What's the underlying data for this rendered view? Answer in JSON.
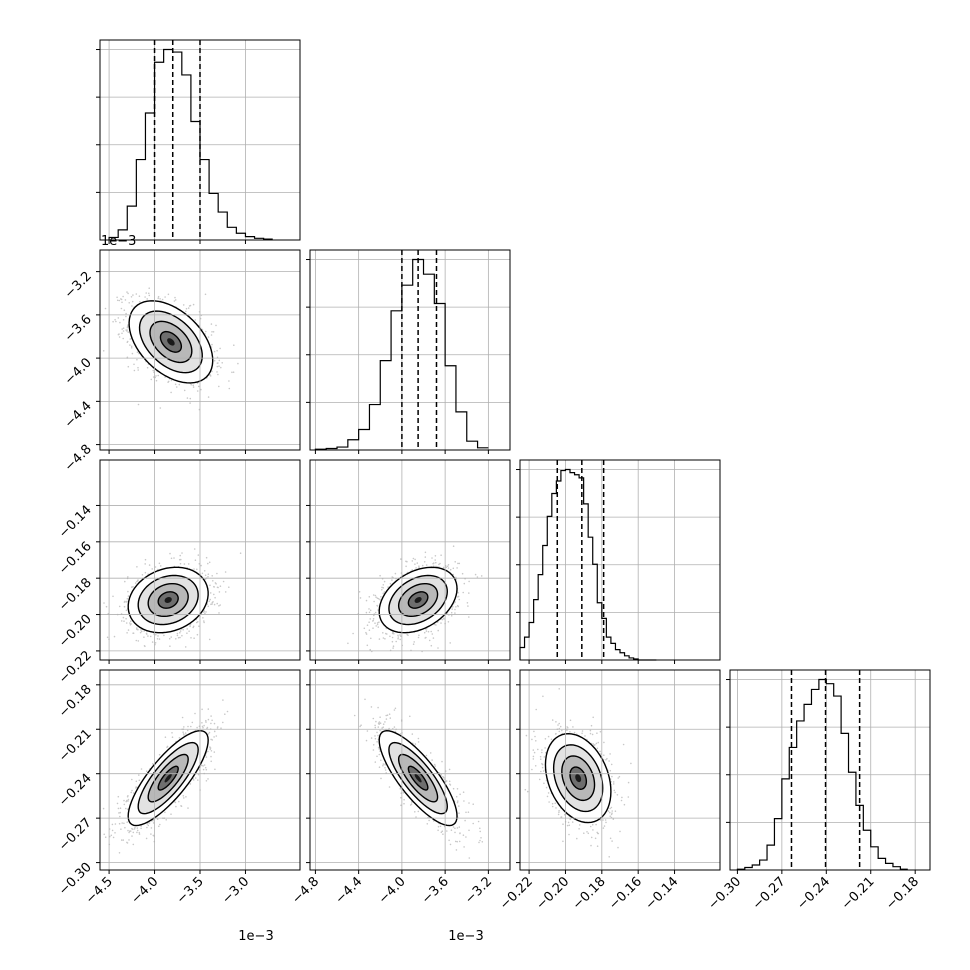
{
  "chart_data": {
    "type": "corner",
    "grid": true,
    "parameters": [
      {
        "range": [
          -4.6,
          -2.4
        ],
        "ticks": [
          -4.5,
          -4.0,
          -3.5,
          -3.0
        ],
        "tick_labels": [
          "−4.5",
          "−4.0",
          "−3.5",
          "−3.0"
        ],
        "offset_text": "1e−3"
      },
      {
        "range": [
          -4.85,
          -3.0
        ],
        "ticks": [
          -4.8,
          -4.4,
          -4.0,
          -3.6,
          -3.2
        ],
        "tick_labels": [
          "−4.8",
          "−4.4",
          "−4.0",
          "−3.6",
          "−3.2"
        ],
        "offset_text": "1e−3"
      },
      {
        "range": [
          -0.225,
          -0.115
        ],
        "ticks": [
          -0.22,
          -0.2,
          -0.18,
          -0.16,
          -0.14
        ],
        "tick_labels": [
          "−0.22",
          "−0.20",
          "−0.18",
          "−0.16",
          "−0.14"
        ],
        "offset_text": ""
      },
      {
        "range": [
          -0.305,
          -0.17
        ],
        "ticks": [
          -0.3,
          -0.27,
          -0.24,
          -0.21,
          -0.18
        ],
        "tick_labels": [
          "−0.30",
          "−0.27",
          "−0.24",
          "−0.21",
          "−0.18"
        ],
        "offset_text": ""
      }
    ],
    "y_tick_labels": {
      "row1": [
        "−4.8",
        "−4.4",
        "−4.0",
        "−3.6",
        "−3.2"
      ],
      "row2": [
        "−0.22",
        "−0.20",
        "−0.18",
        "−0.16",
        "−0.14"
      ],
      "row3": [
        "−0.30",
        "−0.27",
        "−0.24",
        "−0.21",
        "−0.18"
      ]
    },
    "y_offset_text_row1": "1e−3",
    "diagonal": [
      {
        "quantiles": [
          -4.0,
          -3.8,
          -3.5
        ],
        "bin_edges": [
          -4.5,
          -4.4,
          -4.3,
          -4.2,
          -4.1,
          -4.0,
          -3.9,
          -3.8,
          -3.7,
          -3.6,
          -3.5,
          -3.4,
          -3.3,
          -3.2,
          -3.1,
          -3.0,
          -2.9,
          -2.8,
          -2.7
        ],
        "counts": [
          3,
          12,
          40,
          95,
          150,
          210,
          225,
          222,
          195,
          140,
          95,
          55,
          33,
          15,
          8,
          4,
          2,
          1
        ]
      },
      {
        "quantiles": [
          -4.0,
          -3.85,
          -3.68
        ],
        "bin_edges": [
          -4.8,
          -4.7,
          -4.6,
          -4.5,
          -4.4,
          -4.3,
          -4.2,
          -4.1,
          -4.0,
          -3.9,
          -3.8,
          -3.7,
          -3.6,
          -3.5,
          -3.4,
          -3.3,
          -3.2
        ],
        "counts": [
          1,
          2,
          4,
          14,
          28,
          62,
          122,
          190,
          225,
          260,
          240,
          200,
          115,
          52,
          12,
          3
        ]
      },
      {
        "quantiles": [
          -0.2045,
          -0.191,
          -0.179
        ],
        "bin_edges": [
          -0.225,
          -0.2225,
          -0.22,
          -0.2175,
          -0.215,
          -0.2125,
          -0.21,
          -0.2075,
          -0.205,
          -0.2025,
          -0.2,
          -0.1975,
          -0.195,
          -0.1925,
          -0.19,
          -0.1875,
          -0.185,
          -0.1825,
          -0.18,
          -0.1775,
          -0.175,
          -0.1725,
          -0.17,
          -0.1675,
          -0.165,
          -0.1625,
          -0.16,
          -0.1575,
          -0.155,
          -0.1525,
          -0.15
        ],
        "counts": [
          12,
          22,
          36,
          58,
          82,
          110,
          138,
          160,
          172,
          182,
          183,
          180,
          178,
          175,
          150,
          118,
          92,
          55,
          40,
          22,
          16,
          10,
          7,
          4,
          2,
          1,
          0,
          0,
          0,
          0
        ]
      },
      {
        "quantiles": [
          -0.2635,
          -0.2405,
          -0.2175
        ],
        "bin_edges": [
          -0.3,
          -0.295,
          -0.29,
          -0.285,
          -0.28,
          -0.275,
          -0.27,
          -0.265,
          -0.26,
          -0.255,
          -0.25,
          -0.245,
          -0.24,
          -0.235,
          -0.23,
          -0.225,
          -0.22,
          -0.215,
          -0.21,
          -0.205,
          -0.2,
          -0.195,
          -0.19,
          -0.185
        ],
        "counts": [
          1,
          3,
          6,
          12,
          30,
          62,
          110,
          148,
          180,
          200,
          218,
          230,
          225,
          210,
          165,
          118,
          78,
          48,
          28,
          14,
          8,
          4,
          1
        ]
      }
    ],
    "pairs": [
      {
        "row": 1,
        "col": 0,
        "mean": [
          -3.82,
          -3.85
        ],
        "sigma": [
          0.23,
          0.19
        ],
        "rho": -0.45
      },
      {
        "row": 2,
        "col": 0,
        "mean": [
          -3.85,
          -0.192
        ],
        "sigma": [
          0.22,
          0.009
        ],
        "rho": 0.2
      },
      {
        "row": 2,
        "col": 1,
        "mean": [
          -3.85,
          -0.192
        ],
        "sigma": [
          0.18,
          0.009
        ],
        "rho": 0.35
      },
      {
        "row": 3,
        "col": 0,
        "mean": [
          -3.85,
          -0.243
        ],
        "sigma": [
          0.22,
          0.016
        ],
        "rho": 0.8
      },
      {
        "row": 3,
        "col": 1,
        "mean": [
          -3.85,
          -0.243
        ],
        "sigma": [
          0.18,
          0.016
        ],
        "rho": -0.8
      },
      {
        "row": 3,
        "col": 2,
        "mean": [
          -0.193,
          -0.243
        ],
        "sigma": [
          0.009,
          0.015
        ],
        "rho": -0.3
      }
    ],
    "contour_levels_sigma": [
      0.5,
      1.0,
      1.5,
      2.0
    ]
  }
}
